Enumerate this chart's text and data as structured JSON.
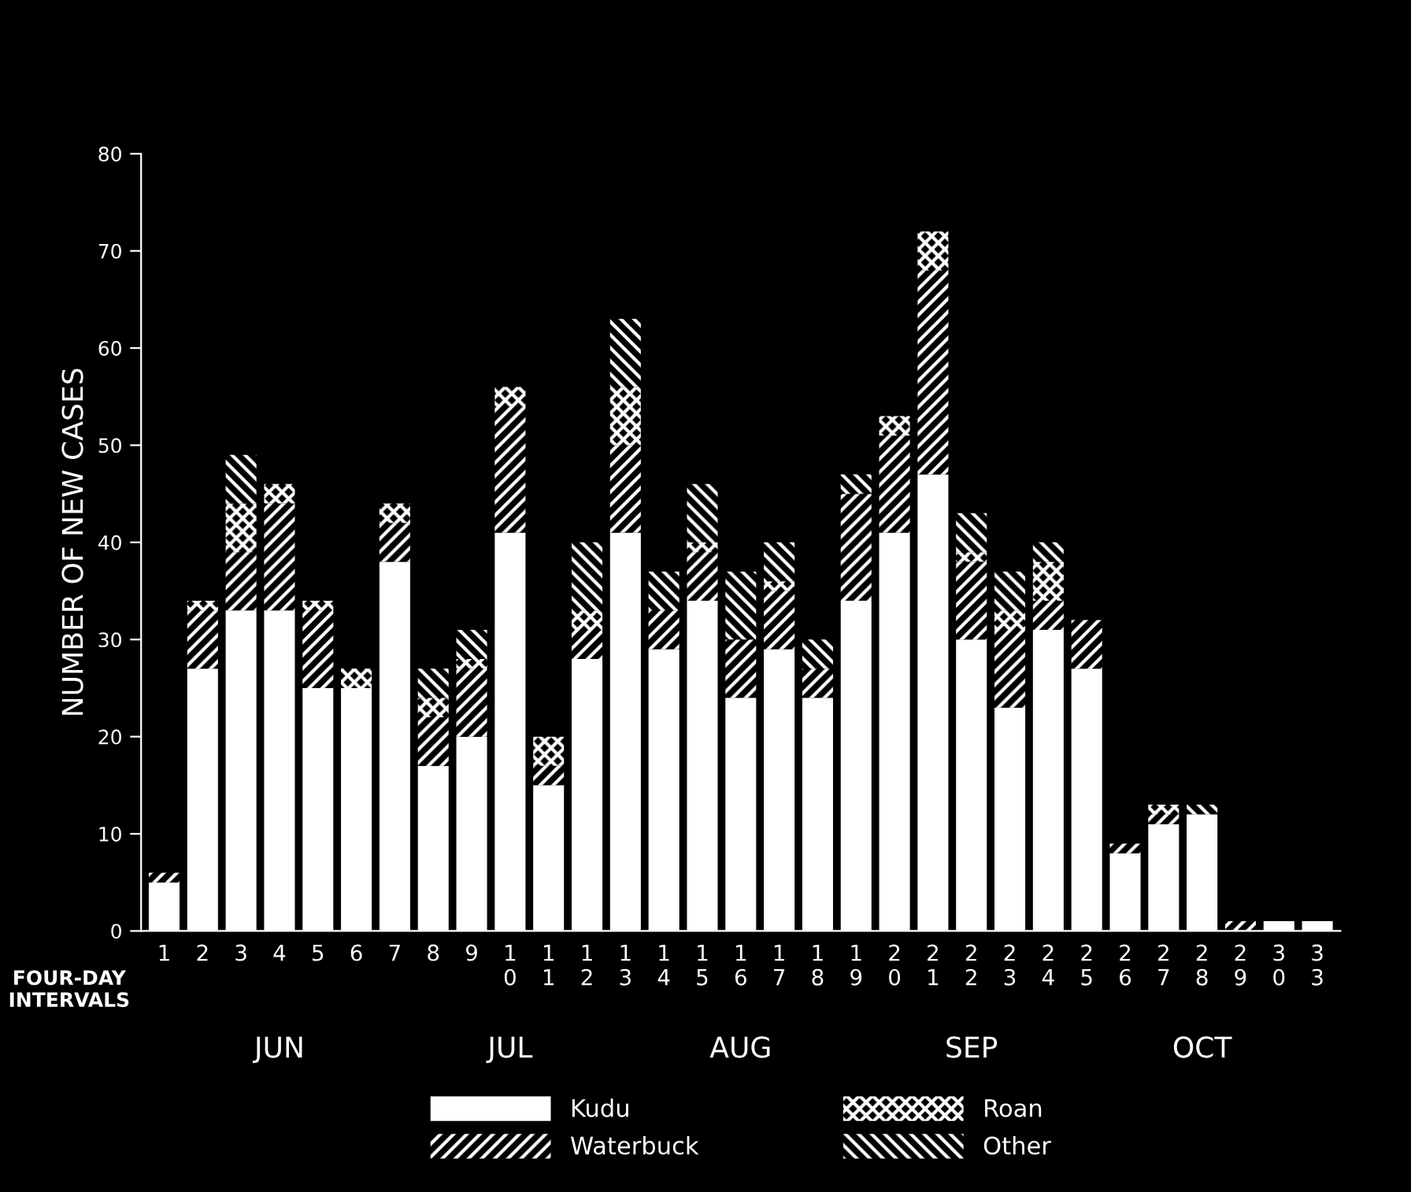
{
  "chart_data": {
    "type": "bar",
    "stacked": true,
    "ylabel": "NUMBER OF NEW CASES",
    "xlabel": "FOUR-DAY INTERVALS",
    "categories": [
      "1",
      "2",
      "3",
      "4",
      "5",
      "6",
      "7",
      "8",
      "9",
      "10",
      "11",
      "12",
      "13",
      "14",
      "15",
      "16",
      "17",
      "18",
      "19",
      "20",
      "21",
      "22",
      "23",
      "24",
      "25",
      "26",
      "27",
      "28",
      "29",
      "30",
      "33"
    ],
    "series": [
      {
        "name": "Kudu",
        "color": "#ffffff",
        "values": [
          5,
          27,
          33,
          33,
          25,
          25,
          38,
          17,
          20,
          41,
          15,
          28,
          41,
          29,
          34,
          24,
          29,
          24,
          34,
          41,
          47,
          30,
          23,
          31,
          27,
          8,
          11,
          12,
          0,
          1,
          1
        ]
      },
      {
        "name": "Waterbuck",
        "color": "#000000",
        "values": [
          1,
          6,
          6,
          11,
          8,
          0,
          4,
          5,
          7,
          13,
          2,
          3,
          9,
          4,
          5,
          6,
          6,
          3,
          11,
          10,
          21,
          8,
          8,
          3,
          5,
          1,
          1,
          0,
          1,
          0,
          0
        ]
      },
      {
        "name": "Roan",
        "color": "#000000",
        "values": [
          0,
          1,
          5,
          2,
          1,
          2,
          2,
          2,
          1,
          2,
          3,
          2,
          6,
          0,
          1,
          0,
          1,
          0,
          0,
          2,
          4,
          1,
          2,
          4,
          0,
          0,
          1,
          0,
          0,
          0,
          0
        ]
      },
      {
        "name": "Other",
        "color": "#000000",
        "values": [
          0,
          0,
          5,
          0,
          0,
          0,
          0,
          3,
          3,
          0,
          0,
          7,
          7,
          4,
          6,
          7,
          4,
          3,
          2,
          0,
          0,
          4,
          4,
          2,
          0,
          0,
          0,
          1,
          0,
          0,
          0
        ]
      }
    ],
    "ylim": [
      0,
      80
    ],
    "yticks": [
      0,
      10,
      20,
      30,
      40,
      50,
      60,
      70,
      80
    ],
    "grid": false,
    "legend": "bottom",
    "annotations": [
      "JUN",
      "JUL",
      "AUG",
      "SEP",
      "OCT"
    ]
  }
}
